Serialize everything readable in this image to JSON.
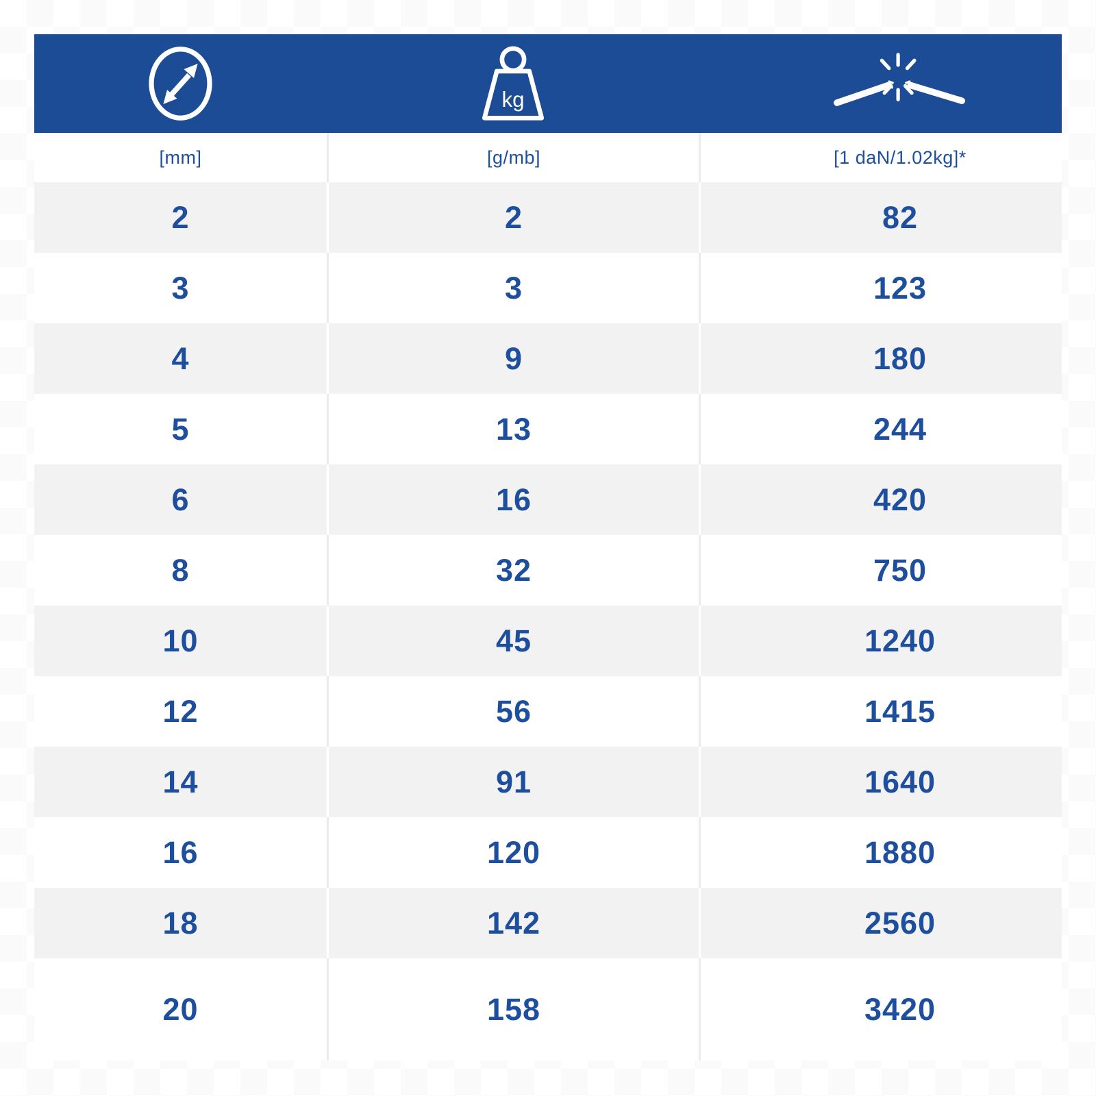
{
  "table": {
    "header": {
      "columns": [
        {
          "icon": "diameter-icon"
        },
        {
          "icon": "weight-kg-icon",
          "label": "kg"
        },
        {
          "icon": "rope-break-strength-icon"
        }
      ]
    },
    "units": [
      "[mm]",
      "[g/mb]",
      "[1 daN/1.02kg]*"
    ],
    "rows": [
      [
        "2",
        "2",
        "82"
      ],
      [
        "3",
        "3",
        "123"
      ],
      [
        "4",
        "9",
        "180"
      ],
      [
        "5",
        "13",
        "244"
      ],
      [
        "6",
        "16",
        "420"
      ],
      [
        "8",
        "32",
        "750"
      ],
      [
        "10",
        "45",
        "1240"
      ],
      [
        "12",
        "56",
        "1415"
      ],
      [
        "14",
        "91",
        "1640"
      ],
      [
        "16",
        "120",
        "1880"
      ],
      [
        "18",
        "142",
        "2560"
      ],
      [
        "20",
        "158",
        "3420"
      ]
    ],
    "colors": {
      "header_bg": "#1d4c96",
      "text_blue": "#1e4f9e",
      "row_alt_bg": "#f2f2f2",
      "divider": "#ebebeb",
      "checker_light": "#fafafa"
    }
  },
  "chart_data": {
    "type": "table",
    "columns": [
      "diameter [mm]",
      "weight [g/mb]",
      "breaking strength [1 daN/1.02kg]*"
    ],
    "rows": [
      [
        2,
        2,
        82
      ],
      [
        3,
        3,
        123
      ],
      [
        4,
        9,
        180
      ],
      [
        5,
        13,
        244
      ],
      [
        6,
        16,
        420
      ],
      [
        8,
        32,
        750
      ],
      [
        10,
        45,
        1240
      ],
      [
        12,
        56,
        1415
      ],
      [
        14,
        91,
        1640
      ],
      [
        16,
        120,
        1880
      ],
      [
        18,
        142,
        2560
      ],
      [
        20,
        158,
        3420
      ]
    ]
  }
}
